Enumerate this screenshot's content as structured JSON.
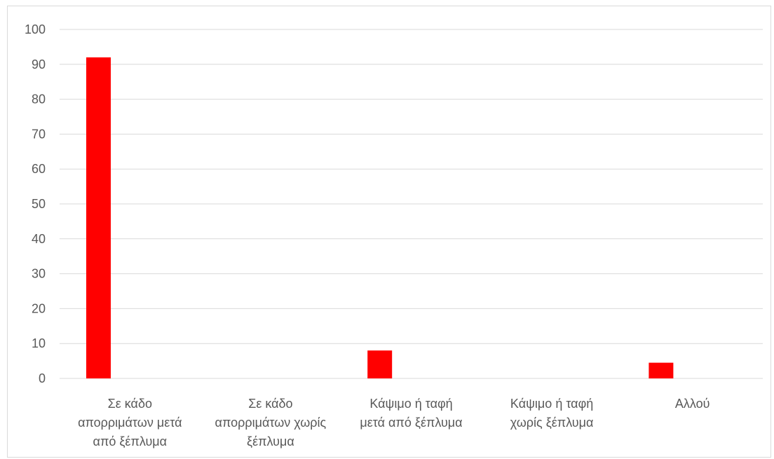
{
  "chart_data": {
    "type": "bar",
    "categories": [
      [
        "Σε κάδο",
        "απορριμάτων μετά",
        "από ξέπλυμα"
      ],
      [
        "Σε κάδο",
        "απορριμάτων χωρίς",
        "ξέπλυμα"
      ],
      [
        "Κάψιμο ή ταφή",
        "μετά από ξέπλυμα"
      ],
      [
        "Κάψιμο ή ταφή",
        "χωρίς ξέπλυμα"
      ],
      [
        "Αλλού"
      ]
    ],
    "values": [
      92,
      0,
      8,
      0,
      4.5
    ],
    "ylim": [
      0,
      100
    ],
    "yticks": [
      "0",
      "10",
      "20",
      "30",
      "40",
      "50",
      "60",
      "70",
      "80",
      "90",
      "100"
    ],
    "bar_color": "#ff0000",
    "grid": true,
    "gridline_color": "#d9d9d9"
  }
}
